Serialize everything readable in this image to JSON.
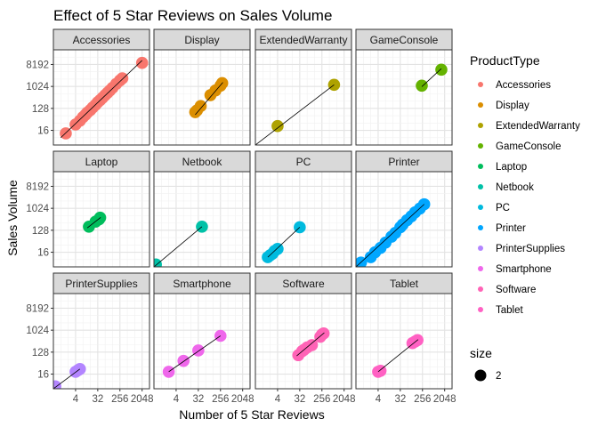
{
  "chart_data": {
    "type": "scatter",
    "title": "Effect of 5 Star Reviews on Sales Volume",
    "xlabel": "Number of 5 Star Reviews",
    "ylabel": "Sales Volume",
    "x_scale": "log2",
    "y_scale": "log2",
    "x_ticks": [
      4,
      32,
      256,
      2048
    ],
    "y_ticks": [
      16,
      128,
      1024,
      8192
    ],
    "xlim": [
      0.5,
      4096
    ],
    "ylim": [
      4,
      32768
    ],
    "grid": true,
    "facet_by": "ProductType",
    "facet_layout": "3 rows x 4 columns",
    "legend_position": "right",
    "legend_title": "ProductType",
    "size_legend": {
      "title": "size",
      "label": "2"
    },
    "trend_line": "black linear fit per facet",
    "facets": [
      {
        "name": "Accessories",
        "color": "#F8766D",
        "points": [
          [
            1.6,
            12
          ],
          [
            4,
            28
          ],
          [
            6,
            40
          ],
          [
            8,
            56
          ],
          [
            10,
            70
          ],
          [
            12,
            86
          ],
          [
            16,
            110
          ],
          [
            20,
            140
          ],
          [
            26,
            180
          ],
          [
            32,
            230
          ],
          [
            40,
            280
          ],
          [
            50,
            350
          ],
          [
            64,
            450
          ],
          [
            80,
            560
          ],
          [
            100,
            700
          ],
          [
            128,
            900
          ],
          [
            180,
            1300
          ],
          [
            256,
            1800
          ],
          [
            320,
            2200
          ],
          [
            2048,
            9500
          ]
        ],
        "fit": [
          [
            1,
            8
          ],
          [
            2048,
            12000
          ]
        ]
      },
      {
        "name": "Display",
        "color": "#DB8E00",
        "points": [
          [
            24,
            90
          ],
          [
            28,
            105
          ],
          [
            40,
            160
          ],
          [
            100,
            450
          ],
          [
            160,
            700
          ],
          [
            256,
            1100
          ],
          [
            300,
            1400
          ]
        ],
        "fit": [
          [
            24,
            70
          ],
          [
            320,
            1500
          ]
        ]
      },
      {
        "name": "ExtendedWarranty",
        "color": "#AEA200",
        "points": [
          [
            4,
            24
          ],
          [
            800,
            1200
          ]
        ],
        "fit": [
          [
            0.5,
            4
          ],
          [
            800,
            1200
          ]
        ]
      },
      {
        "name": "GameConsole",
        "color": "#64B200",
        "points": [
          [
            240,
            1100
          ],
          [
            1500,
            5000
          ]
        ],
        "fit": [
          [
            240,
            1000
          ],
          [
            1500,
            5500
          ]
        ]
      },
      {
        "name": "Laptop",
        "color": "#00BD5C",
        "points": [
          [
            14,
            180
          ],
          [
            26,
            290
          ],
          [
            36,
            360
          ],
          [
            40,
            420
          ]
        ],
        "fit": [
          [
            12,
            160
          ],
          [
            42,
            430
          ]
        ]
      },
      {
        "name": "Netbook",
        "color": "#00C1A7",
        "points": [
          [
            0.6,
            5
          ],
          [
            45,
            180
          ]
        ],
        "fit": [
          [
            0.5,
            4
          ],
          [
            45,
            180
          ]
        ]
      },
      {
        "name": "PC",
        "color": "#00BADE",
        "points": [
          [
            1.6,
            10
          ],
          [
            2,
            12
          ],
          [
            2.5,
            14
          ],
          [
            3,
            18
          ],
          [
            4,
            22
          ],
          [
            32,
            170
          ]
        ],
        "fit": [
          [
            1.6,
            10
          ],
          [
            32,
            170
          ]
        ]
      },
      {
        "name": "Printer",
        "color": "#00A6FF",
        "points": [
          [
            0.8,
            6
          ],
          [
            2,
            10
          ],
          [
            3,
            16
          ],
          [
            5,
            24
          ],
          [
            8,
            40
          ],
          [
            14,
            70
          ],
          [
            20,
            100
          ],
          [
            32,
            170
          ],
          [
            40,
            220
          ],
          [
            60,
            330
          ],
          [
            90,
            480
          ],
          [
            128,
            700
          ],
          [
            200,
            1000
          ],
          [
            300,
            1500
          ]
        ],
        "fit": [
          [
            0.5,
            4
          ],
          [
            300,
            1500
          ]
        ]
      },
      {
        "name": "PrinterSupplies",
        "color": "#B385FF",
        "points": [
          [
            0.6,
            5
          ],
          [
            4,
            20
          ],
          [
            5,
            23
          ],
          [
            6,
            26
          ]
        ],
        "fit": [
          [
            0.5,
            4
          ],
          [
            6,
            26
          ]
        ]
      },
      {
        "name": "Smartphone",
        "color": "#EF67EB",
        "points": [
          [
            2,
            20
          ],
          [
            8,
            56
          ],
          [
            32,
            150
          ],
          [
            256,
            600
          ]
        ],
        "fit": [
          [
            2,
            20
          ],
          [
            256,
            600
          ]
        ]
      },
      {
        "name": "Software",
        "color": "#FF63B6",
        "points": [
          [
            28,
            96
          ],
          [
            40,
            140
          ],
          [
            48,
            160
          ],
          [
            64,
            200
          ],
          [
            100,
            250
          ],
          [
            220,
            550
          ],
          [
            256,
            680
          ],
          [
            300,
            750
          ]
        ],
        "fit": [
          [
            24,
            90
          ],
          [
            320,
            800
          ]
        ]
      },
      {
        "name": "Tablet",
        "color": "#FF61C3",
        "points": [
          [
            4,
            20
          ],
          [
            5,
            22
          ],
          [
            100,
            300
          ],
          [
            128,
            350
          ],
          [
            160,
            400
          ]
        ],
        "fit": [
          [
            4,
            20
          ],
          [
            170,
            420
          ]
        ]
      }
    ]
  }
}
